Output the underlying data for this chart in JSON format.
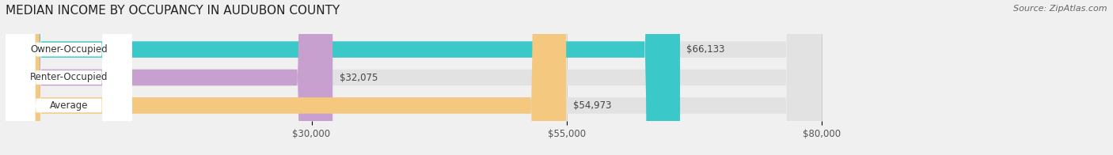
{
  "title": "MEDIAN INCOME BY OCCUPANCY IN AUDUBON COUNTY",
  "source": "Source: ZipAtlas.com",
  "categories": [
    "Owner-Occupied",
    "Renter-Occupied",
    "Average"
  ],
  "values": [
    66133,
    32075,
    54973
  ],
  "bar_colors": [
    "#3ac8c8",
    "#c8a0d0",
    "#f5c880"
  ],
  "value_labels": [
    "$66,133",
    "$32,075",
    "$54,973"
  ],
  "xlim": [
    0,
    80000
  ],
  "xticks": [
    30000,
    55000,
    80000
  ],
  "xticklabels": [
    "$30,000",
    "$55,000",
    "$80,000"
  ],
  "background_color": "#f0f0f0",
  "bar_background_color": "#e2e2e2",
  "title_fontsize": 11,
  "bar_height": 0.58,
  "figsize": [
    14.06,
    1.96
  ],
  "dpi": 100
}
